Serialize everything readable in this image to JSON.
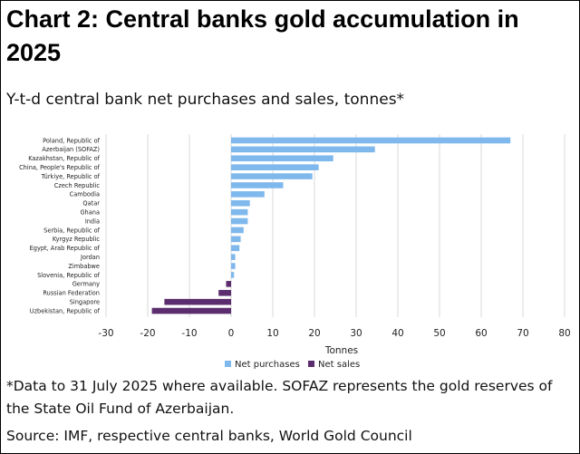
{
  "title": "Chart 2: Central banks gold accumulation in 2025",
  "subtitle": "Y-t-d central bank net purchases and sales, tonnes*",
  "footnote": "*Data to 31 July 2025 where available. SOFAZ represents the gold reserves of the State Oil Fund of Azerbaijan.",
  "source": "Source: IMF, respective central banks, World Gold Council",
  "colors": {
    "net_purchases": "#7fb8ec",
    "net_sales": "#5b2d6e",
    "grid": "#d9d9d9",
    "axis_text": "#222222"
  },
  "chart_data": {
    "type": "bar",
    "orientation": "horizontal",
    "categories": [
      "Poland, Republic of",
      "Azerbaijan (SOFAZ)",
      "Kazakhstan, Republic of",
      "China, People's Republic of",
      "Türkiye, Republic of",
      "Czech Republic",
      "Cambodia",
      "Qatar",
      "Ghana",
      "India",
      "Serbia, Republic of",
      "Kyrgyz Republic",
      "Egypt, Arab Republic of",
      "Jordan",
      "Zimbabwe",
      "Slovenia, Republic of",
      "Germany",
      "Russian Federation",
      "Singapore",
      "Uzbekistan, Republic of"
    ],
    "values": [
      67,
      34.5,
      24.5,
      21,
      19.5,
      12.5,
      8,
      4.5,
      4,
      4,
      3,
      2.3,
      2,
      1,
      1,
      0.7,
      -1.2,
      -3,
      -16,
      -19
    ],
    "series": [
      {
        "name": "Net purchases"
      },
      {
        "name": "Net sales"
      }
    ],
    "xlabel": "Tonnes",
    "xlim": [
      -30,
      80
    ],
    "xticks": [
      -30,
      -20,
      -10,
      0,
      10,
      20,
      30,
      40,
      50,
      60,
      70,
      80
    ],
    "grid": "vertical",
    "legend_position": "bottom"
  }
}
